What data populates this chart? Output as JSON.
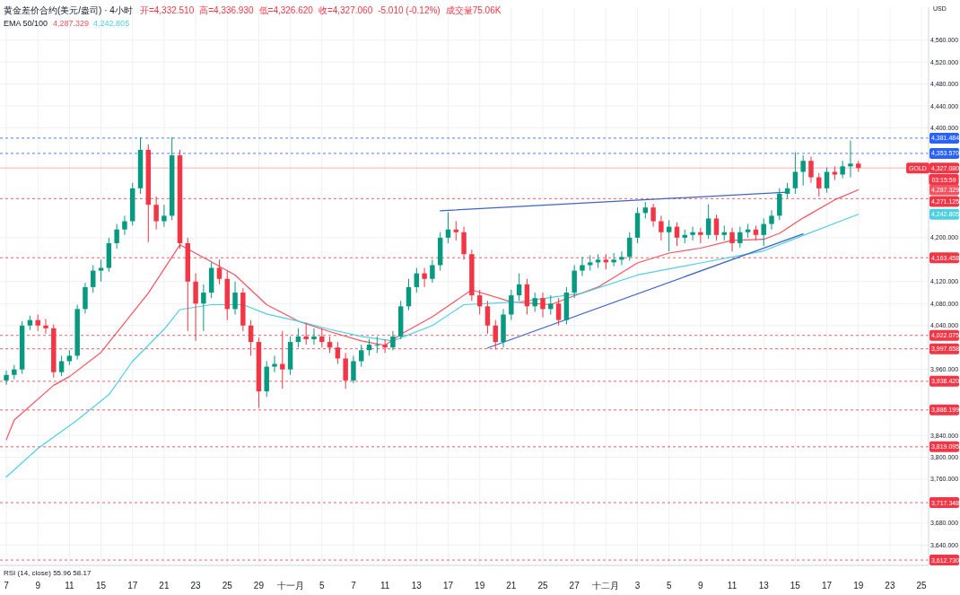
{
  "chart_data": {
    "type": "candlestick",
    "title": "黄金差价合约(美元/盎司) · 4小时",
    "subtitle": "EMA 50/100",
    "ylabel": "USD",
    "annotations": [
      "开=4,332.510",
      "高=4,336.930",
      "低=4,326.620",
      "收=4,327.060",
      "-5.010 (-0.12%)",
      "成交量75.06K",
      {
        "text": "GOLD",
        "y": 4327.08
      },
      {
        "text": "03:15:59",
        "y": 4306
      },
      {
        "text": "4,287.329",
        "y": 4287.329
      },
      {
        "text": "4,242.805",
        "y": 4242.805
      },
      "RSI (14, close) 55.96 58.17"
    ],
    "categories": [
      "7",
      null,
      null,
      null,
      "9",
      null,
      null,
      null,
      "11",
      null,
      null,
      null,
      "15",
      null,
      null,
      null,
      "17",
      null,
      null,
      null,
      "21",
      null,
      null,
      null,
      "23",
      null,
      null,
      null,
      "25",
      null,
      null,
      null,
      "29",
      null,
      null,
      null,
      "十一月",
      null,
      null,
      null,
      "5",
      null,
      null,
      null,
      "7",
      null,
      null,
      null,
      "11",
      null,
      null,
      null,
      "13",
      null,
      null,
      null,
      "17",
      null,
      null,
      null,
      "19",
      null,
      null,
      null,
      "21",
      null,
      null,
      null,
      "25",
      null,
      null,
      null,
      "27",
      null,
      null,
      null,
      "十二月",
      null,
      null,
      null,
      "3",
      null,
      null,
      null,
      "5",
      null,
      null,
      null,
      "9",
      null,
      null,
      null,
      "11",
      null,
      null,
      null,
      "13",
      null,
      null,
      null,
      "15",
      null,
      null,
      null,
      "17",
      null,
      null,
      null,
      "19",
      null,
      null,
      null,
      "23",
      null,
      null,
      null,
      "25"
    ],
    "ohlc": [
      [
        3940,
        3958,
        3932,
        3950
      ],
      [
        3950,
        3968,
        3942,
        3960
      ],
      [
        3960,
        4048,
        3952,
        4040
      ],
      [
        4040,
        4058,
        4032,
        4050
      ],
      [
        4050,
        4060,
        4030,
        4040
      ],
      [
        4040,
        4052,
        4025,
        4035
      ],
      [
        4035,
        4042,
        3945,
        3955
      ],
      [
        3955,
        3985,
        3948,
        3975
      ],
      [
        3975,
        3995,
        3968,
        3985
      ],
      [
        3985,
        4078,
        3978,
        4070
      ],
      [
        4070,
        4118,
        4062,
        4110
      ],
      [
        4110,
        4150,
        4100,
        4140
      ],
      [
        4140,
        4160,
        4120,
        4145
      ],
      [
        4145,
        4200,
        4138,
        4190
      ],
      [
        4190,
        4225,
        4180,
        4215
      ],
      [
        4215,
        4240,
        4205,
        4230
      ],
      [
        4230,
        4300,
        4222,
        4290
      ],
      [
        4290,
        4383,
        4280,
        4360
      ],
      [
        4360,
        4370,
        4192,
        4260
      ],
      [
        4260,
        4275,
        4215,
        4230
      ],
      [
        4230,
        4260,
        4220,
        4240
      ],
      [
        4240,
        4383,
        4232,
        4350
      ],
      [
        4350,
        4360,
        4180,
        4190
      ],
      [
        4190,
        4200,
        4030,
        4120
      ],
      [
        4120,
        4135,
        4012,
        4080
      ],
      [
        4080,
        4115,
        4030,
        4100
      ],
      [
        4100,
        4155,
        4090,
        4145
      ],
      [
        4145,
        4160,
        4115,
        4125
      ],
      [
        4125,
        4140,
        4050,
        4070
      ],
      [
        4070,
        4120,
        4060,
        4100
      ],
      [
        4100,
        4108,
        4030,
        4040
      ],
      [
        4040,
        4050,
        3985,
        4010
      ],
      [
        4010,
        4018,
        3890,
        3920
      ],
      [
        3920,
        3975,
        3910,
        3965
      ],
      [
        3965,
        3985,
        3955,
        3970
      ],
      [
        3970,
        4030,
        3925,
        3960
      ],
      [
        3960,
        4020,
        3950,
        4010
      ],
      [
        4010,
        4035,
        4000,
        4020
      ],
      [
        4020,
        4045,
        4005,
        4015
      ],
      [
        4015,
        4035,
        4005,
        4020
      ],
      [
        4020,
        4035,
        4000,
        4010
      ],
      [
        4010,
        4020,
        3990,
        4000
      ],
      [
        4000,
        4010,
        3970,
        3980
      ],
      [
        3980,
        3990,
        3925,
        3940
      ],
      [
        3940,
        3985,
        3935,
        3975
      ],
      [
        3975,
        4005,
        3965,
        3995
      ],
      [
        3995,
        4015,
        3985,
        4005
      ],
      [
        4005,
        4020,
        3990,
        4005
      ],
      [
        4005,
        4015,
        3990,
        4000
      ],
      [
        4000,
        4030,
        3995,
        4020
      ],
      [
        4020,
        4085,
        4015,
        4075
      ],
      [
        4075,
        4125,
        4068,
        4110
      ],
      [
        4110,
        4145,
        4100,
        4135
      ],
      [
        4135,
        4145,
        4110,
        4125
      ],
      [
        4125,
        4160,
        4118,
        4150
      ],
      [
        4150,
        4210,
        4140,
        4200
      ],
      [
        4200,
        4246,
        4190,
        4215
      ],
      [
        4215,
        4230,
        4195,
        4210
      ],
      [
        4210,
        4220,
        4160,
        4170
      ],
      [
        4170,
        4178,
        4085,
        4095
      ],
      [
        4095,
        4105,
        4060,
        4075
      ],
      [
        4075,
        4085,
        4025,
        4040
      ],
      [
        4040,
        4050,
        3996,
        4010
      ],
      [
        4010,
        4070,
        4000,
        4060
      ],
      [
        4060,
        4105,
        4050,
        4095
      ],
      [
        4095,
        4135,
        4085,
        4115
      ],
      [
        4115,
        4125,
        4060,
        4075
      ],
      [
        4075,
        4100,
        4065,
        4090
      ],
      [
        4090,
        4100,
        4055,
        4070
      ],
      [
        4070,
        4095,
        4060,
        4080
      ],
      [
        4080,
        4090,
        4040,
        4050
      ],
      [
        4050,
        4110,
        4042,
        4100
      ],
      [
        4100,
        4150,
        4090,
        4140
      ],
      [
        4140,
        4165,
        4130,
        4150
      ],
      [
        4150,
        4168,
        4140,
        4155
      ],
      [
        4155,
        4170,
        4145,
        4160
      ],
      [
        4160,
        4170,
        4142,
        4155
      ],
      [
        4155,
        4172,
        4148,
        4160
      ],
      [
        4160,
        4175,
        4150,
        4165
      ],
      [
        4165,
        4210,
        4158,
        4200
      ],
      [
        4200,
        4255,
        4190,
        4245
      ],
      [
        4245,
        4265,
        4235,
        4255
      ],
      [
        4255,
        4262,
        4220,
        4230
      ],
      [
        4230,
        4240,
        4195,
        4210
      ],
      [
        4210,
        4232,
        4175,
        4220
      ],
      [
        4220,
        4228,
        4185,
        4200
      ],
      [
        4200,
        4215,
        4190,
        4205
      ],
      [
        4205,
        4220,
        4195,
        4210
      ],
      [
        4210,
        4218,
        4190,
        4205
      ],
      [
        4205,
        4261,
        4198,
        4235
      ],
      [
        4235,
        4242,
        4195,
        4205
      ],
      [
        4205,
        4222,
        4195,
        4210
      ],
      [
        4210,
        4218,
        4175,
        4190
      ],
      [
        4190,
        4220,
        4182,
        4210
      ],
      [
        4210,
        4225,
        4200,
        4215
      ],
      [
        4215,
        4222,
        4195,
        4205
      ],
      [
        4205,
        4235,
        4185,
        4225
      ],
      [
        4225,
        4250,
        4215,
        4240
      ],
      [
        4240,
        4290,
        4232,
        4280
      ],
      [
        4280,
        4300,
        4272,
        4290
      ],
      [
        4290,
        4356,
        4280,
        4320
      ],
      [
        4320,
        4350,
        4295,
        4340
      ],
      [
        4340,
        4348,
        4300,
        4310
      ],
      [
        4310,
        4318,
        4275,
        4290
      ],
      [
        4290,
        4328,
        4282,
        4320
      ],
      [
        4320,
        4330,
        4305,
        4315
      ],
      [
        4315,
        4340,
        4308,
        4330
      ],
      [
        4330,
        4377,
        4310,
        4335
      ],
      [
        4335,
        4340,
        4320,
        4327
      ],
      null,
      null,
      null,
      null,
      null,
      null,
      null,
      null
    ],
    "series": [
      {
        "type": "line",
        "color": "#f7525f",
        "values": [
          3832,
          3868,
          null,
          null,
          null,
          null,
          3931,
          null,
          3947,
          null,
          null,
          null,
          3991,
          null,
          null,
          4045,
          null,
          null,
          4099,
          null,
          null,
          null,
          4187,
          null,
          null,
          null,
          4156,
          null,
          null,
          4132,
          null,
          null,
          null,
          4078,
          null,
          null,
          null,
          4048,
          null,
          null,
          null,
          4029,
          null,
          null,
          null,
          4012,
          null,
          null,
          4004,
          null,
          4024,
          null,
          null,
          null,
          4056,
          null,
          null,
          null,
          null,
          4105,
          null,
          null,
          null,
          null,
          4083,
          null,
          null,
          null,
          null,
          4078,
          null,
          4089,
          null,
          null,
          null,
          4110,
          null,
          null,
          null,
          null,
          4154,
          null,
          null,
          null,
          4172,
          null,
          null,
          null,
          4181,
          null,
          null,
          null,
          4195,
          null,
          null,
          null,
          4197,
          null,
          4208,
          null,
          null,
          4236,
          null,
          null,
          null,
          4269,
          null,
          null,
          4287.329,
          null,
          null,
          null,
          null,
          null,
          null,
          null,
          null
        ]
      },
      {
        "type": "line",
        "color": "#4dd0e1",
        "values": [
          3764,
          null,
          null,
          null,
          3816,
          null,
          null,
          null,
          null,
          3868,
          null,
          null,
          null,
          3914,
          null,
          null,
          3975,
          null,
          null,
          null,
          4033,
          null,
          4069,
          null,
          null,
          null,
          4078,
          null,
          null,
          null,
          4078,
          null,
          null,
          4061,
          null,
          null,
          null,
          4048,
          null,
          null,
          null,
          4033,
          null,
          null,
          null,
          4020,
          null,
          null,
          null,
          4012,
          null,
          null,
          null,
          null,
          4040,
          null,
          null,
          null,
          4078,
          null,
          null,
          null,
          null,
          null,
          null,
          4083,
          null,
          null,
          null,
          null,
          null,
          null,
          null,
          4099,
          null,
          null,
          null,
          null,
          null,
          null,
          4132,
          null,
          null,
          null,
          null,
          null,
          null,
          null,
          4154,
          null,
          null,
          null,
          null,
          null,
          null,
          null,
          4176,
          null,
          null,
          null,
          null,
          4204,
          null,
          null,
          null,
          null,
          null,
          null,
          4242.805,
          null,
          null,
          null,
          null,
          null,
          null,
          null,
          null
        ]
      },
      {
        "type": "line",
        "color": "#3f63c8",
        "values": [
          null,
          null,
          null,
          null,
          null,
          null,
          null,
          null,
          null,
          null,
          null,
          null,
          null,
          null,
          null,
          null,
          null,
          null,
          null,
          null,
          null,
          null,
          null,
          null,
          null,
          null,
          null,
          null,
          null,
          null,
          null,
          null,
          null,
          null,
          null,
          null,
          null,
          null,
          null,
          null,
          null,
          null,
          null,
          null,
          null,
          null,
          null,
          null,
          null,
          null,
          null,
          null,
          null,
          null,
          null,
          4249,
          null,
          null,
          null,
          null,
          null,
          null,
          null,
          null,
          null,
          null,
          null,
          null,
          null,
          null,
          null,
          null,
          null,
          null,
          null,
          null,
          null,
          null,
          null,
          null,
          null,
          null,
          null,
          null,
          null,
          null,
          null,
          null,
          null,
          null,
          null,
          null,
          null,
          null,
          null,
          null,
          null,
          null,
          null,
          4283,
          null,
          null,
          null,
          null,
          null,
          null,
          null,
          null,
          null,
          null,
          null,
          null,
          null,
          null,
          null,
          null,
          null
        ]
      },
      {
        "type": "line",
        "color": "#3f63c8",
        "values": [
          null,
          null,
          null,
          null,
          null,
          null,
          null,
          null,
          null,
          null,
          null,
          null,
          null,
          null,
          null,
          null,
          null,
          null,
          null,
          null,
          null,
          null,
          null,
          null,
          null,
          null,
          null,
          null,
          null,
          null,
          null,
          null,
          null,
          null,
          null,
          null,
          null,
          null,
          null,
          null,
          null,
          null,
          null,
          null,
          null,
          null,
          null,
          null,
          null,
          null,
          null,
          null,
          null,
          null,
          null,
          null,
          null,
          null,
          null,
          null,
          null,
          3999,
          null,
          null,
          null,
          null,
          null,
          null,
          null,
          null,
          null,
          null,
          null,
          null,
          null,
          null,
          null,
          null,
          null,
          null,
          null,
          null,
          null,
          null,
          null,
          null,
          null,
          null,
          null,
          null,
          null,
          null,
          null,
          null,
          null,
          null,
          null,
          null,
          null,
          null,
          null,
          4207,
          null,
          null,
          null,
          null,
          null,
          null,
          null,
          null,
          null,
          null,
          null,
          null,
          null,
          null,
          null
        ]
      }
    ],
    "ref_lines": [
      {
        "axis": "y",
        "value": 4381.484,
        "label": "4,381.484",
        "color": "#2962ff",
        "line_style": "dashed"
      },
      {
        "axis": "y",
        "value": 4353.57,
        "label": "4,353.570",
        "color": "#2962ff",
        "line_style": "dashed"
      },
      {
        "axis": "y",
        "value": 4327.08,
        "label": "4,327.080",
        "color": "#f23645",
        "line_style": "solid"
      },
      {
        "axis": "y",
        "value": 4271.125,
        "label": "4,271.125",
        "color": "#f23645",
        "line_style": "dashed"
      },
      {
        "axis": "y",
        "value": 4163.458,
        "label": "4,163.458",
        "color": "#f23645",
        "line_style": "dashed"
      },
      {
        "axis": "y",
        "value": 4022.075,
        "label": "4,022.075",
        "color": "#f23645",
        "line_style": "dashed"
      },
      {
        "axis": "y",
        "value": 3997.658,
        "label": "3,997.658",
        "color": "#f23645",
        "line_style": "dashed"
      },
      {
        "axis": "y",
        "value": 3938.42,
        "label": "3,938.420",
        "color": "#f23645",
        "line_style": "dashed"
      },
      {
        "axis": "y",
        "value": 3886.199,
        "label": "3,886.199",
        "color": "#f23645",
        "line_style": "dashed"
      },
      {
        "axis": "y",
        "value": 3819.095,
        "label": "3,819.095",
        "color": "#f23645",
        "line_style": "dashed"
      },
      {
        "axis": "y",
        "value": 3717.348,
        "label": "3,717.348",
        "color": "#f23645",
        "line_style": "dashed"
      },
      {
        "axis": "y",
        "value": 3612.73,
        "label": "3,612.730",
        "color": "#f23645",
        "line_style": "dashed"
      }
    ],
    "ylim": [
      3603,
      4620
    ],
    "yticks": [
      {
        "value": 4560,
        "label": "4,560.000"
      },
      {
        "value": 4520,
        "label": "4,520.000"
      },
      {
        "value": 4480,
        "label": "4,480.000"
      },
      {
        "value": 4440,
        "label": "4,440.000"
      },
      {
        "value": 4400,
        "label": "4,400.000"
      },
      {
        "value": 4200,
        "label": "4,200.000"
      },
      {
        "value": 4120,
        "label": "4,120.000"
      },
      {
        "value": 4080,
        "label": "4,080.000"
      },
      {
        "value": 4040,
        "label": "4,040.000"
      },
      {
        "value": 3960,
        "label": "3,960.000"
      },
      {
        "value": 3840,
        "label": "3,840.000"
      },
      {
        "value": 3800,
        "label": "3,800.000"
      },
      {
        "value": 3760,
        "label": "3,760.000"
      },
      {
        "value": 3680,
        "label": "3,680.000"
      },
      {
        "value": 3640,
        "label": "3,640.000"
      }
    ],
    "grid": true
  }
}
